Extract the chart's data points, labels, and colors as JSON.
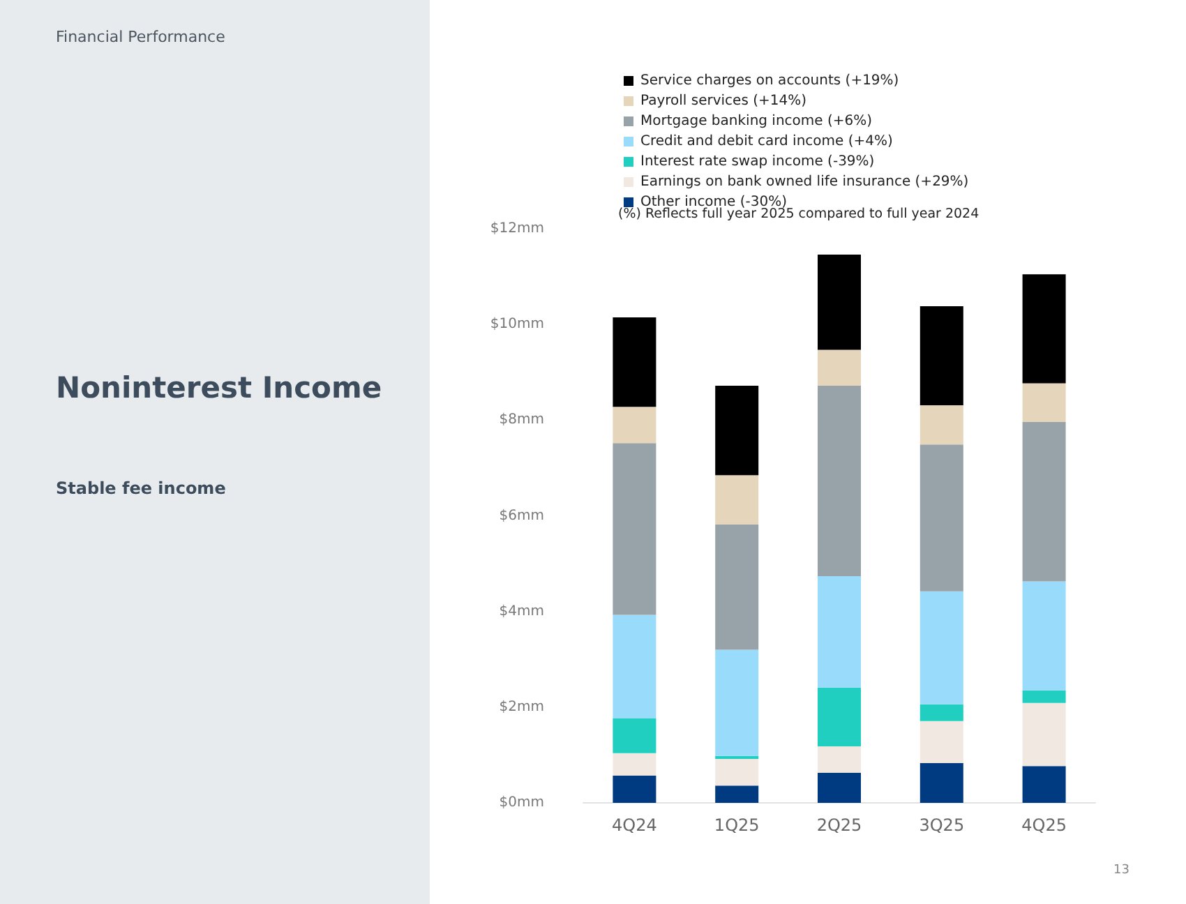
{
  "chart_data": {
    "type": "bar",
    "title": "Noninterest Income",
    "subtitle": "Stable fee income",
    "annotations": [
      "Financial Performance",
      "(%) Reflects full year 2025 compared to full year 2024",
      "13"
    ],
    "categories": [
      "4Q24",
      "1Q25",
      "2Q25",
      "3Q25",
      "4Q25"
    ],
    "stacked": true,
    "series": [
      {
        "name": "Other income (-30%)",
        "color": "#003a80",
        "values": [
          0.57,
          0.36,
          0.63,
          0.83,
          0.77
        ]
      },
      {
        "name": "Earnings on bank owned life insurance (+29%)",
        "color": "#f1e9e1",
        "values": [
          0.47,
          0.56,
          0.55,
          0.88,
          1.32
        ]
      },
      {
        "name": "Interest rate swap income (-39%)",
        "color": "#20cfbf",
        "values": [
          0.73,
          0.06,
          1.23,
          0.35,
          0.26
        ]
      },
      {
        "name": "Credit and debit card income (+4%)",
        "color": "#99dbfb",
        "values": [
          2.16,
          2.22,
          2.33,
          2.36,
          2.28
        ]
      },
      {
        "name": "Mortgage banking income (+6%)",
        "color": "#97a3a9",
        "values": [
          3.59,
          2.62,
          3.98,
          3.07,
          3.33
        ]
      },
      {
        "name": "Payroll services (+14%)",
        "color": "#e5d5bb",
        "values": [
          0.76,
          1.03,
          0.75,
          0.82,
          0.81
        ]
      },
      {
        "name": "Service charges on accounts (+19%)",
        "color": "#000000",
        "values": [
          1.87,
          1.87,
          1.99,
          2.07,
          2.28
        ]
      }
    ],
    "ylim": [
      0,
      12
    ],
    "yticks": [
      {
        "value": 0,
        "label": "$0mm"
      },
      {
        "value": 2,
        "label": "$2mm"
      },
      {
        "value": 4,
        "label": "$4mm"
      },
      {
        "value": 6,
        "label": "$6mm"
      },
      {
        "value": 8,
        "label": "$8mm"
      },
      {
        "value": 10,
        "label": "$10mm"
      },
      {
        "value": 12,
        "label": "$12mm"
      }
    ],
    "grid": false,
    "legend": "top"
  }
}
